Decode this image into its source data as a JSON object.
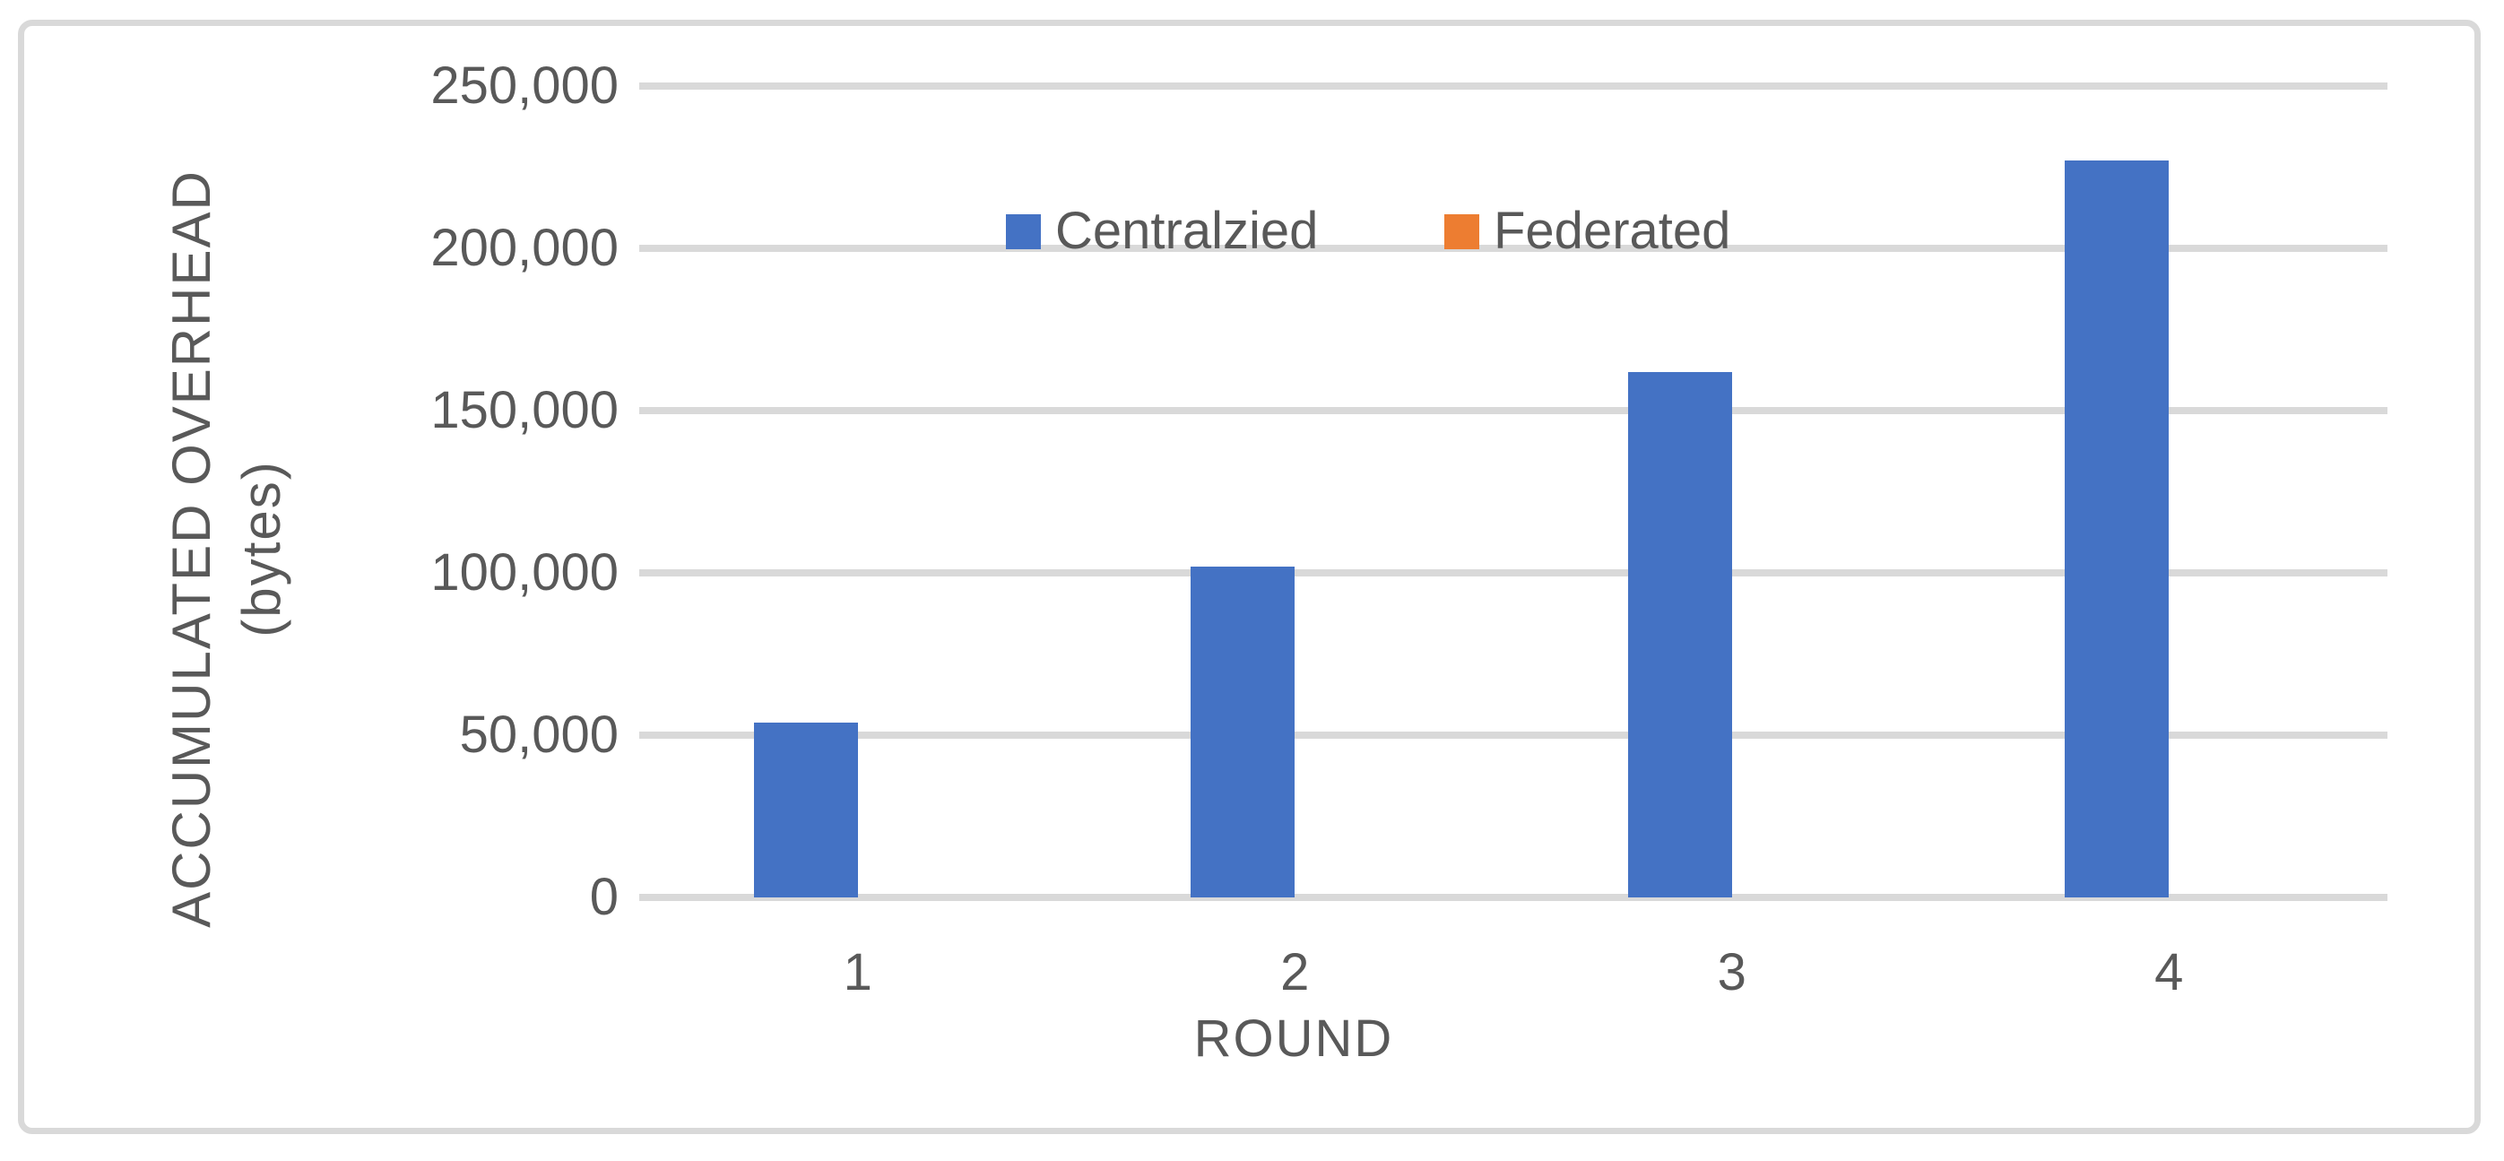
{
  "chart_data": {
    "type": "bar",
    "title": "",
    "categories": [
      "1",
      "2",
      "3",
      "4"
    ],
    "series": [
      {
        "name": "Centralzied",
        "color": "#4472C4",
        "values": [
          54000,
          102000,
          162000,
          227000
        ]
      },
      {
        "name": "Federated",
        "color": "#ED7D31",
        "values": [
          0,
          0,
          0,
          0
        ]
      }
    ],
    "xlabel": "ROUND",
    "ylabel": "ACCUMULATED OVERHEAD (bytes)",
    "ylabel_lines": [
      "ACCUMULATED OVERHEAD",
      "(bytes)"
    ],
    "ylim": [
      0,
      250000
    ],
    "y_ticks": [
      {
        "value": 0,
        "label": "0"
      },
      {
        "value": 50000,
        "label": "50,000"
      },
      {
        "value": 100000,
        "label": "100,000"
      },
      {
        "value": 150000,
        "label": "150,000"
      },
      {
        "value": 200000,
        "label": "200,000"
      },
      {
        "value": 250000,
        "label": "250,000"
      }
    ],
    "grid": "horizontal",
    "legend_position": "inside-top-center"
  },
  "colors": {
    "background": "#FFFFFF",
    "border": "#D9D9D9",
    "gridline": "#D9D9D9",
    "text": "#595959"
  }
}
